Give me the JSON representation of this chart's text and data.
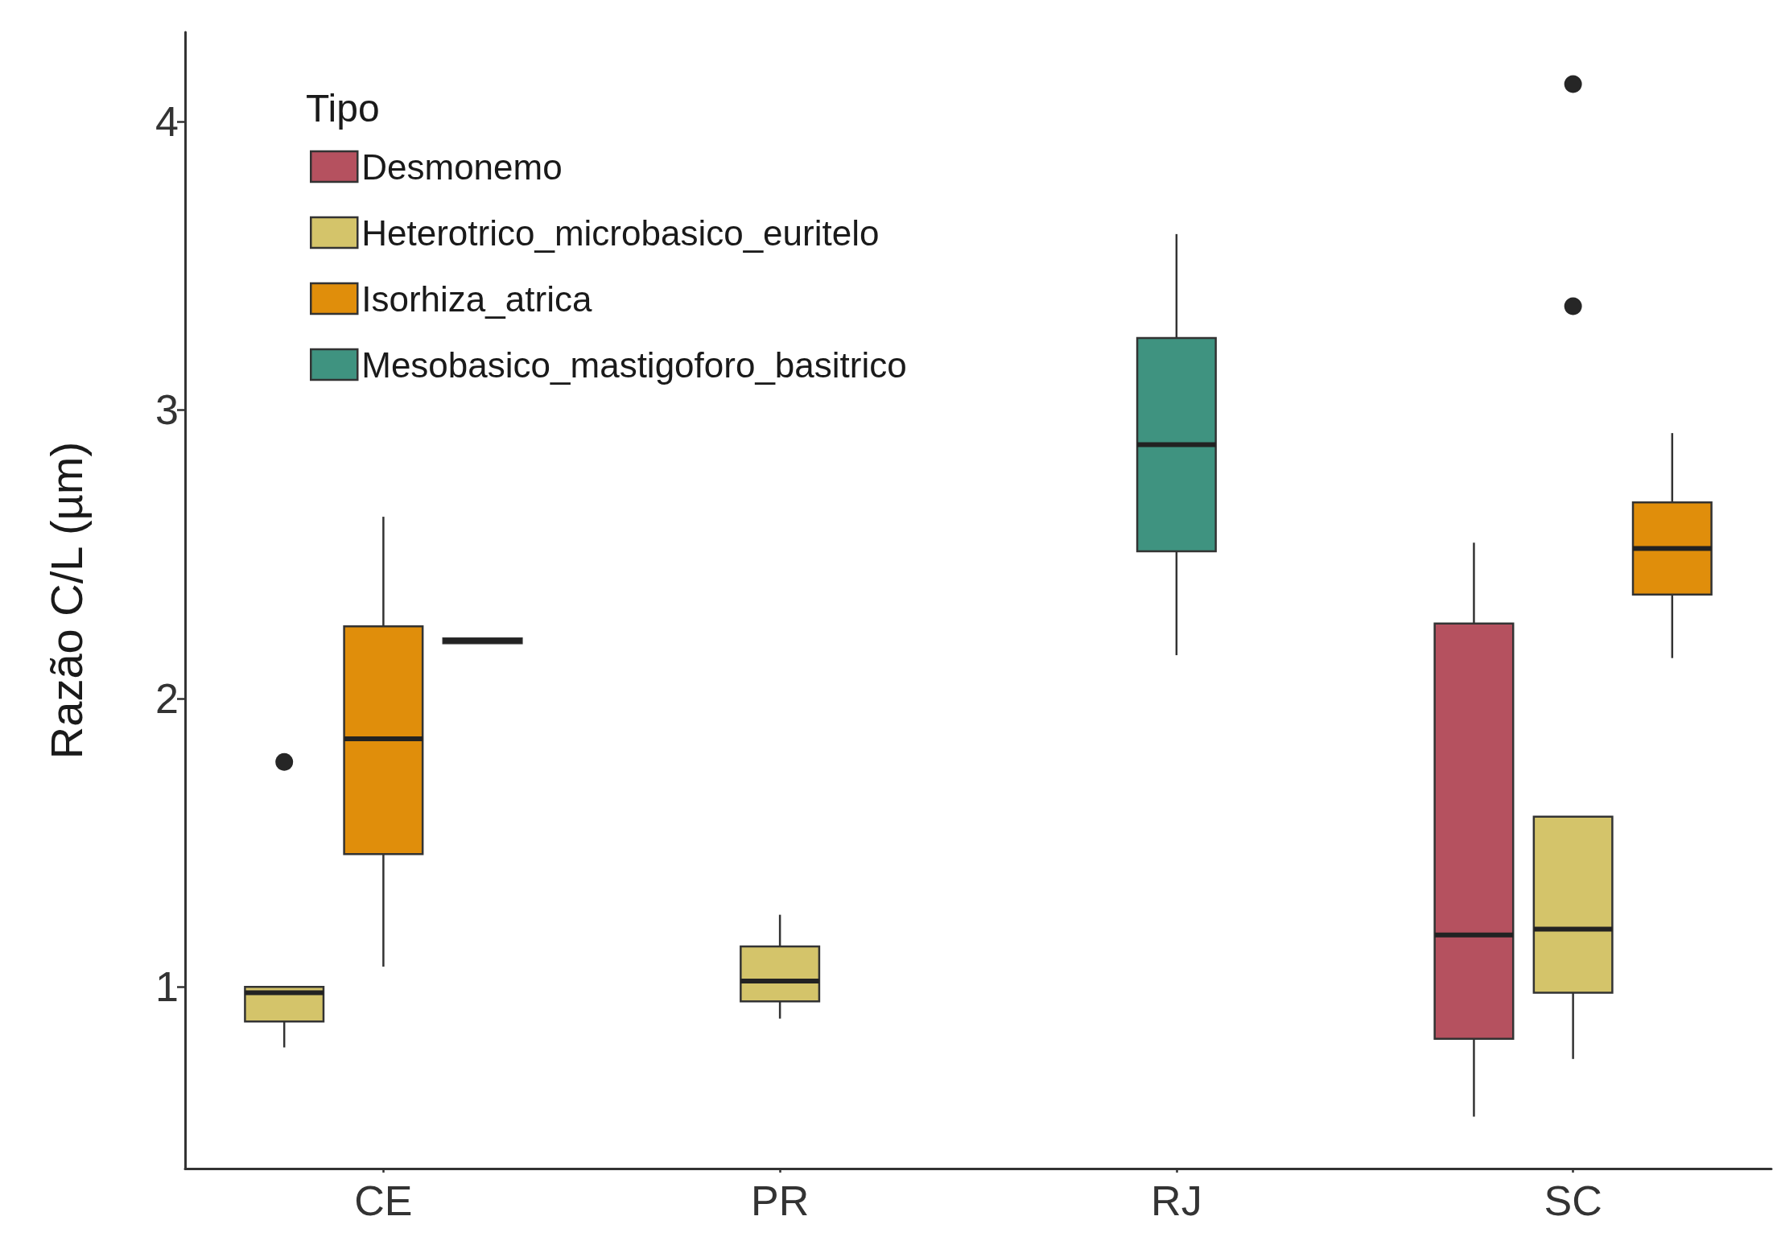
{
  "chart_data": {
    "type": "box",
    "ylabel": "Razão C/L (µm)",
    "legend_title": "Tipo",
    "legend": "top left",
    "grid": false,
    "categories": [
      "CE",
      "PR",
      "RJ",
      "SC"
    ],
    "ylim": [
      0.37,
      4.31
    ],
    "yticks": [
      1,
      2,
      3,
      4
    ],
    "series": [
      {
        "name": "Desmonemo",
        "color": "#b5515f",
        "boxes": [
          null,
          null,
          null,
          {
            "low": 0.55,
            "q1": 0.82,
            "median": 1.18,
            "q3": 2.26,
            "high": 2.54
          }
        ]
      },
      {
        "name": "Heterotrico_microbasico_euritelo",
        "color": "#d4c46a",
        "boxes": [
          {
            "low": 0.79,
            "q1": 0.88,
            "median": 0.98,
            "q3": 1.0,
            "high": 1.0,
            "outliers": [
              1.78
            ]
          },
          {
            "low": 0.89,
            "q1": 0.95,
            "median": 1.02,
            "q3": 1.14,
            "high": 1.25
          },
          null,
          {
            "low": 0.75,
            "q1": 0.98,
            "median": 1.2,
            "q3": 1.59,
            "high": 1.59,
            "outliers": [
              4.13,
              3.36
            ]
          }
        ]
      },
      {
        "name": "Isorhiza_atrica",
        "color": "#e08e0b",
        "boxes": [
          {
            "low": 1.07,
            "q1": 1.46,
            "median": 1.86,
            "q3": 2.25,
            "high": 2.63
          },
          null,
          null,
          {
            "low": 2.14,
            "q1": 2.36,
            "median": 2.52,
            "q3": 2.68,
            "high": 2.92
          }
        ]
      },
      {
        "name": "Mesobasico_mastigoforo_basitrico",
        "color": "#3f9380",
        "boxes": [
          {
            "low": 2.2,
            "q1": 2.2,
            "median": 2.2,
            "q3": 2.2,
            "high": 2.2
          },
          null,
          {
            "low": 2.15,
            "q1": 2.51,
            "median": 2.88,
            "q3": 3.25,
            "high": 3.61
          },
          null
        ]
      }
    ]
  }
}
